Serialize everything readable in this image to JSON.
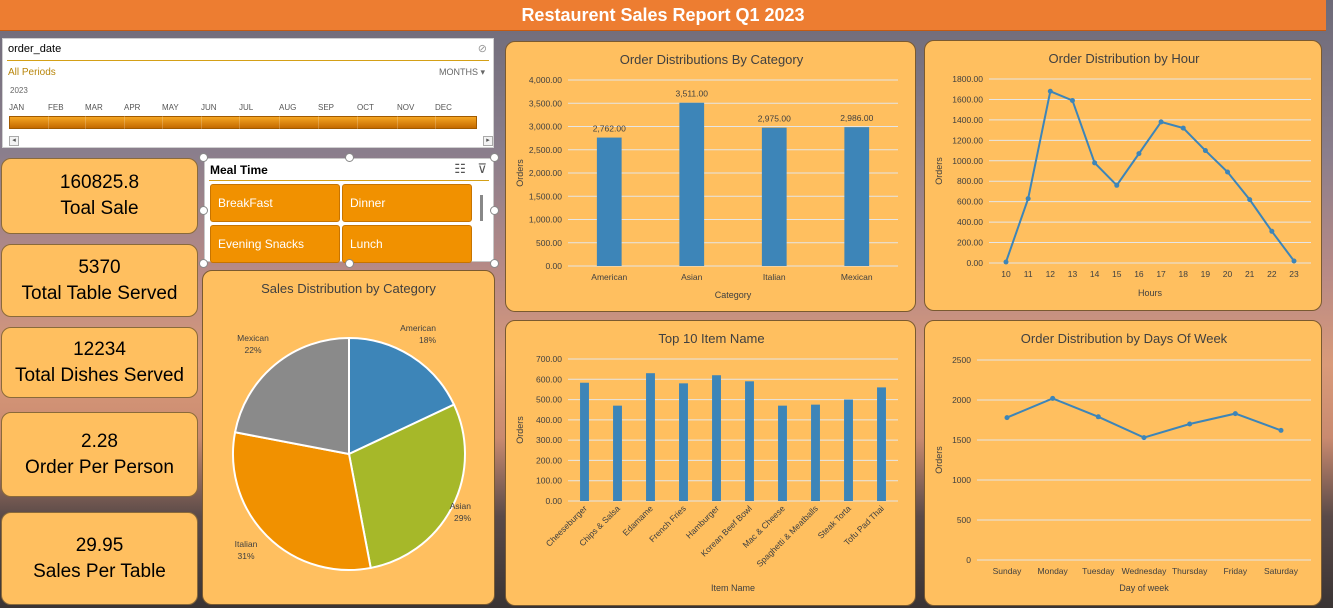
{
  "title": "Restaurent Sales Report Q1 2023",
  "date_slicer": {
    "field": "order_date",
    "period": "All Periods",
    "granularity": "MONTHS",
    "year": "2023",
    "months": [
      "JAN",
      "FEB",
      "MAR",
      "APR",
      "MAY",
      "JUN",
      "JUL",
      "AUG",
      "SEP",
      "OCT",
      "NOV",
      "DEC"
    ]
  },
  "kpis": [
    {
      "value": "160825.8",
      "label": "Toal Sale"
    },
    {
      "value": "5370",
      "label": "Total Table Served"
    },
    {
      "value": "12234",
      "label": "Total Dishes Served"
    },
    {
      "value": "2.28",
      "label": "Order Per Person"
    },
    {
      "value": "29.95",
      "label": "Sales Per Table"
    }
  ],
  "meal_slicer": {
    "title": "Meal Time",
    "items": [
      "BreakFast",
      "Dinner",
      "Evening Snacks",
      "Lunch"
    ]
  },
  "icons": {
    "filter": "filter-clear-icon",
    "multiselect": "multi-select-icon"
  },
  "colors": {
    "accent": "#ed7d31",
    "panel": "#ffbf5f",
    "series": "#3d85b8"
  },
  "chart_data": [
    {
      "type": "bar",
      "title": "Order Distributions By Category",
      "xlabel": "Category",
      "ylabel": "Orders",
      "categories": [
        "American",
        "Asian",
        "Italian",
        "Mexican"
      ],
      "values": [
        2762,
        3511,
        2975,
        2986
      ],
      "value_labels": [
        "2,762.00",
        "3,511.00",
        "2,975.00",
        "2,986.00"
      ],
      "ylim": [
        0,
        4000
      ],
      "yticks": [
        "0.00",
        "500.00",
        "1,000.00",
        "1,500.00",
        "2,000.00",
        "2,500.00",
        "3,000.00",
        "3,500.00",
        "4,000.00"
      ]
    },
    {
      "type": "line",
      "title": "Order Distribution by Hour",
      "xlabel": "Hours",
      "ylabel": "Orders",
      "x": [
        "10",
        "11",
        "12",
        "13",
        "14",
        "15",
        "16",
        "17",
        "18",
        "19",
        "20",
        "21",
        "22",
        "23"
      ],
      "values": [
        10,
        630,
        1680,
        1590,
        980,
        760,
        1070,
        1380,
        1320,
        1100,
        890,
        620,
        310,
        20
      ],
      "ylim": [
        0,
        1800
      ],
      "yticks": [
        "0.00",
        "200.00",
        "400.00",
        "600.00",
        "800.00",
        "1000.00",
        "1200.00",
        "1400.00",
        "1600.00",
        "1800.00"
      ]
    },
    {
      "type": "pie",
      "title": "Sales Distribution by Category",
      "slices": [
        {
          "label": "American",
          "pct": "18%",
          "value": 18,
          "color": "#3d85b8"
        },
        {
          "label": "Asian",
          "pct": "29%",
          "value": 29,
          "color": "#a6b829"
        },
        {
          "label": "Italian",
          "pct": "31%",
          "value": 31,
          "color": "#f19100"
        },
        {
          "label": "Mexican",
          "pct": "22%",
          "value": 22,
          "color": "#8a8a8a"
        }
      ]
    },
    {
      "type": "bar",
      "title": "Top 10 Item Name",
      "xlabel": "Item Name",
      "ylabel": "Orders",
      "categories": [
        "Cheeseburger",
        "Chips & Salsa",
        "Edamame",
        "French Fries",
        "Hamburger",
        "Korean Beef Bowl",
        "Mac & Cheese",
        "Spaghetti & Meatballs",
        "Steak Torta",
        "Tofu Pad Thai"
      ],
      "values": [
        583,
        470,
        630,
        580,
        620,
        590,
        470,
        475,
        500,
        560
      ],
      "ylim": [
        0,
        700
      ],
      "yticks": [
        "0.00",
        "100.00",
        "200.00",
        "300.00",
        "400.00",
        "500.00",
        "600.00",
        "700.00"
      ]
    },
    {
      "type": "line",
      "title": "Order Distribution by Days Of Week",
      "xlabel": "Day of week",
      "ylabel": "Orders",
      "x": [
        "Sunday",
        "Monday",
        "Tuesday",
        "Wednesday",
        "Thursday",
        "Friday",
        "Saturday"
      ],
      "values": [
        1780,
        2020,
        1790,
        1530,
        1700,
        1830,
        1620
      ],
      "ylim": [
        0,
        2500
      ],
      "yticks": [
        "0",
        "500",
        "1000",
        "1500",
        "2000",
        "2500"
      ]
    }
  ]
}
